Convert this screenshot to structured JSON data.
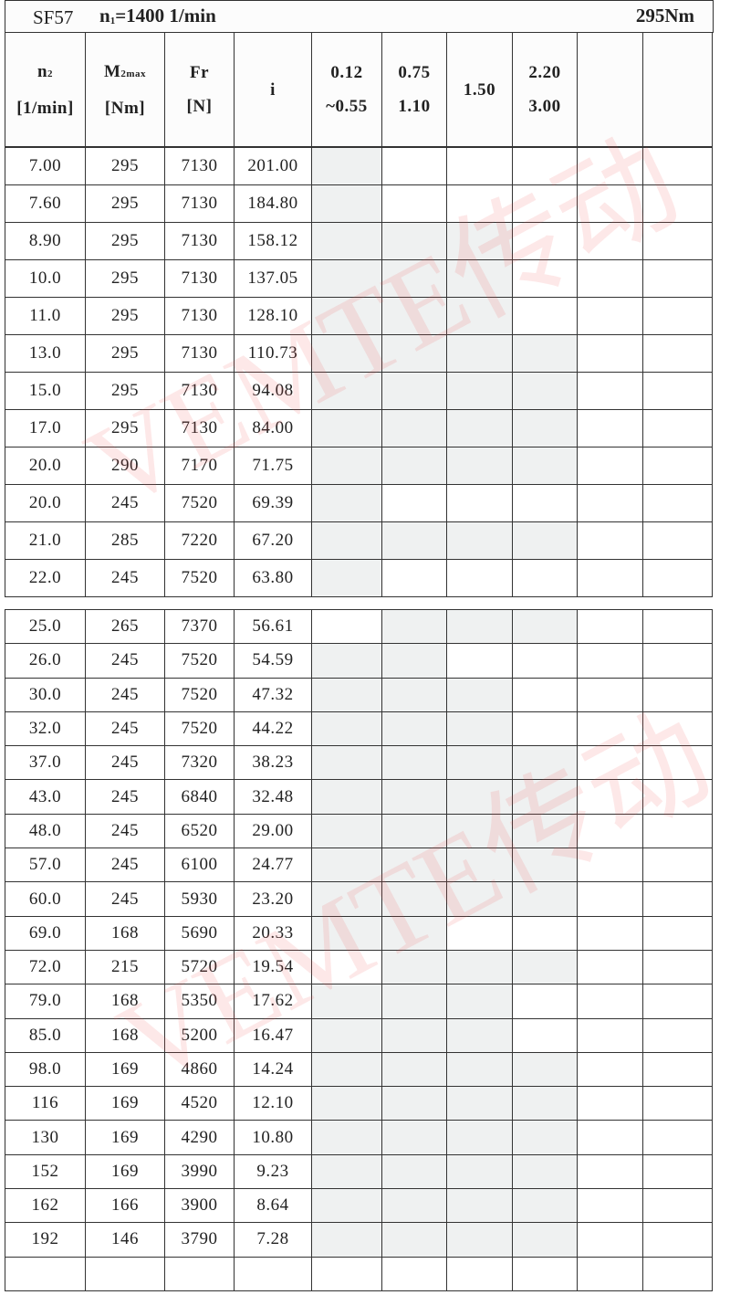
{
  "title": {
    "model": "SF57",
    "speed_prefix": "n",
    "speed_sub": "1",
    "speed_value": "=1400 1/min",
    "torque": "295Nm"
  },
  "header": {
    "n2": {
      "main": "n",
      "sub": "2",
      "unit": "[1/min]"
    },
    "m2max": {
      "main": "M",
      "sub": "2max",
      "unit": "[Nm]"
    },
    "fr": {
      "main": "Fr",
      "unit": "[N]"
    },
    "i": "i",
    "power": [
      {
        "line1": "0.12",
        "line2": "~0.55"
      },
      {
        "line1": "0.75",
        "line2": "1.10"
      },
      {
        "line1": "1.50",
        "line2": ""
      },
      {
        "line1": "2.20",
        "line2": "3.00"
      },
      {
        "line1": "",
        "line2": ""
      },
      {
        "line1": "",
        "line2": ""
      }
    ]
  },
  "colors": {
    "shade": "#eff1f1",
    "border": "#333333",
    "watermark": "#f05050"
  },
  "watermark": "VEMTE传动",
  "rows_top": [
    {
      "n2": "7.00",
      "m2": "295",
      "fr": "7130",
      "i": "201.00",
      "avail": [
        1,
        0,
        0,
        0,
        0,
        0
      ]
    },
    {
      "n2": "7.60",
      "m2": "295",
      "fr": "7130",
      "i": "184.80",
      "avail": [
        1,
        0,
        0,
        0,
        0,
        0
      ]
    },
    {
      "n2": "8.90",
      "m2": "295",
      "fr": "7130",
      "i": "158.12",
      "avail": [
        1,
        1,
        1,
        0,
        0,
        0
      ]
    },
    {
      "n2": "10.0",
      "m2": "295",
      "fr": "7130",
      "i": "137.05",
      "avail": [
        1,
        1,
        1,
        0,
        0,
        0
      ]
    },
    {
      "n2": "11.0",
      "m2": "295",
      "fr": "7130",
      "i": "128.10",
      "avail": [
        1,
        1,
        1,
        0,
        0,
        0
      ]
    },
    {
      "n2": "13.0",
      "m2": "295",
      "fr": "7130",
      "i": "110.73",
      "avail": [
        1,
        1,
        1,
        1,
        0,
        0
      ]
    },
    {
      "n2": "15.0",
      "m2": "295",
      "fr": "7130",
      "i": "94.08",
      "avail": [
        1,
        1,
        1,
        1,
        0,
        0
      ]
    },
    {
      "n2": "17.0",
      "m2": "295",
      "fr": "7130",
      "i": "84.00",
      "avail": [
        1,
        1,
        1,
        1,
        0,
        0
      ]
    },
    {
      "n2": "20.0",
      "m2": "290",
      "fr": "7170",
      "i": "71.75",
      "avail": [
        1,
        1,
        1,
        1,
        0,
        0
      ]
    },
    {
      "n2": "20.0",
      "m2": "245",
      "fr": "7520",
      "i": "69.39",
      "avail": [
        1,
        0,
        0,
        0,
        0,
        0
      ]
    },
    {
      "n2": "21.0",
      "m2": "285",
      "fr": "7220",
      "i": "67.20",
      "avail": [
        1,
        1,
        1,
        1,
        0,
        0
      ]
    },
    {
      "n2": "22.0",
      "m2": "245",
      "fr": "7520",
      "i": "63.80",
      "avail": [
        1,
        0,
        0,
        0,
        0,
        0
      ]
    }
  ],
  "rows_bottom": [
    {
      "n2": "25.0",
      "m2": "265",
      "fr": "7370",
      "i": "56.61",
      "avail": [
        0,
        1,
        1,
        1,
        0,
        0
      ]
    },
    {
      "n2": "26.0",
      "m2": "245",
      "fr": "7520",
      "i": "54.59",
      "avail": [
        1,
        1,
        0,
        0,
        0,
        0
      ]
    },
    {
      "n2": "30.0",
      "m2": "245",
      "fr": "7520",
      "i": "47.32",
      "avail": [
        1,
        1,
        1,
        0,
        0,
        0
      ]
    },
    {
      "n2": "32.0",
      "m2": "245",
      "fr": "7520",
      "i": "44.22",
      "avail": [
        1,
        1,
        1,
        0,
        0,
        0
      ]
    },
    {
      "n2": "37.0",
      "m2": "245",
      "fr": "7320",
      "i": "38.23",
      "avail": [
        1,
        1,
        1,
        1,
        0,
        0
      ]
    },
    {
      "n2": "43.0",
      "m2": "245",
      "fr": "6840",
      "i": "32.48",
      "avail": [
        1,
        1,
        1,
        1,
        0,
        0
      ]
    },
    {
      "n2": "48.0",
      "m2": "245",
      "fr": "6520",
      "i": "29.00",
      "avail": [
        1,
        1,
        1,
        1,
        0,
        0
      ]
    },
    {
      "n2": "57.0",
      "m2": "245",
      "fr": "6100",
      "i": "24.77",
      "avail": [
        1,
        1,
        1,
        1,
        0,
        0
      ]
    },
    {
      "n2": "60.0",
      "m2": "245",
      "fr": "5930",
      "i": "23.20",
      "avail": [
        1,
        1,
        1,
        1,
        0,
        0
      ]
    },
    {
      "n2": "69.0",
      "m2": "168",
      "fr": "5690",
      "i": "20.33",
      "avail": [
        1,
        1,
        0,
        0,
        0,
        0
      ]
    },
    {
      "n2": "72.0",
      "m2": "215",
      "fr": "5720",
      "i": "19.54",
      "avail": [
        0,
        1,
        1,
        1,
        0,
        0
      ]
    },
    {
      "n2": "79.0",
      "m2": "168",
      "fr": "5350",
      "i": "17.62",
      "avail": [
        1,
        1,
        1,
        0,
        0,
        0
      ]
    },
    {
      "n2": "85.0",
      "m2": "168",
      "fr": "5200",
      "i": "16.47",
      "avail": [
        1,
        1,
        1,
        0,
        0,
        0
      ]
    },
    {
      "n2": "98.0",
      "m2": "169",
      "fr": "4860",
      "i": "14.24",
      "avail": [
        1,
        1,
        1,
        1,
        0,
        0
      ]
    },
    {
      "n2": "116",
      "m2": "169",
      "fr": "4520",
      "i": "12.10",
      "avail": [
        1,
        1,
        1,
        1,
        0,
        0
      ]
    },
    {
      "n2": "130",
      "m2": "169",
      "fr": "4290",
      "i": "10.80",
      "avail": [
        1,
        1,
        1,
        1,
        0,
        0
      ]
    },
    {
      "n2": "152",
      "m2": "169",
      "fr": "3990",
      "i": "9.23",
      "avail": [
        1,
        1,
        1,
        1,
        0,
        0
      ]
    },
    {
      "n2": "162",
      "m2": "166",
      "fr": "3900",
      "i": "8.64",
      "avail": [
        1,
        1,
        1,
        1,
        0,
        0
      ]
    },
    {
      "n2": "192",
      "m2": "146",
      "fr": "3790",
      "i": "7.28",
      "avail": [
        1,
        1,
        1,
        1,
        0,
        0
      ]
    }
  ]
}
